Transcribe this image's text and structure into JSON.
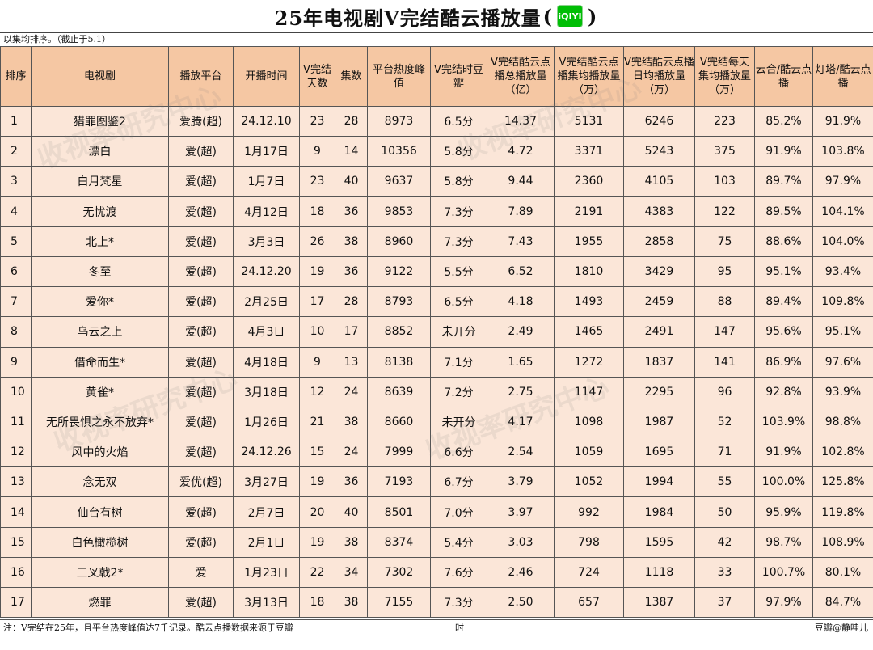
{
  "title": {
    "text": "25年电视剧V完结酷云播放量",
    "open_paren": "(",
    "logo_text": "iQIYI",
    "close_paren": ")"
  },
  "note_top": "以集均排序。（截止于5.1）",
  "headers": [
    "排序",
    "电视剧",
    "播放平台",
    "开播时间",
    "V完结天数",
    "集数",
    "平台热度峰值",
    "V完结时豆瓣",
    "V完结酷云点播总播放量（亿）",
    "V完结酷云点播集均播放量（万）",
    "V完结酷云点播日均播放量（万）",
    "V完结每天集均播放量（万）",
    "云合/酷云点播",
    "灯塔/酷云点播"
  ],
  "rows": [
    [
      "1",
      "猎罪图鉴2",
      "爱腾(超)",
      "24.12.10",
      "23",
      "28",
      "8973",
      "6.5分",
      "14.37",
      "5131",
      "6246",
      "223",
      "85.2%",
      "91.9%"
    ],
    [
      "2",
      "漂白",
      "爱(超)",
      "1月17日",
      "9",
      "14",
      "10356",
      "5.8分",
      "4.72",
      "3371",
      "5243",
      "375",
      "91.9%",
      "103.8%"
    ],
    [
      "3",
      "白月梵星",
      "爱(超)",
      "1月7日",
      "23",
      "40",
      "9637",
      "5.8分",
      "9.44",
      "2360",
      "4105",
      "103",
      "89.7%",
      "97.9%"
    ],
    [
      "4",
      "无忧渡",
      "爱(超)",
      "4月12日",
      "18",
      "36",
      "9853",
      "7.3分",
      "7.89",
      "2191",
      "4383",
      "122",
      "89.5%",
      "104.1%"
    ],
    [
      "5",
      "北上*",
      "爱(超)",
      "3月3日",
      "26",
      "38",
      "8960",
      "7.3分",
      "7.43",
      "1955",
      "2858",
      "75",
      "88.6%",
      "104.0%"
    ],
    [
      "6",
      "冬至",
      "爱(超)",
      "24.12.20",
      "19",
      "36",
      "9122",
      "5.5分",
      "6.52",
      "1810",
      "3429",
      "95",
      "95.1%",
      "93.4%"
    ],
    [
      "7",
      "爱你*",
      "爱(超)",
      "2月25日",
      "17",
      "28",
      "8793",
      "6.5分",
      "4.18",
      "1493",
      "2459",
      "88",
      "89.4%",
      "109.8%"
    ],
    [
      "8",
      "乌云之上",
      "爱(超)",
      "4月3日",
      "10",
      "17",
      "8852",
      "未开分",
      "2.49",
      "1465",
      "2491",
      "147",
      "95.6%",
      "95.1%"
    ],
    [
      "9",
      "借命而生*",
      "爱(超)",
      "4月18日",
      "9",
      "13",
      "8138",
      "7.1分",
      "1.65",
      "1272",
      "1837",
      "141",
      "86.9%",
      "97.6%"
    ],
    [
      "10",
      "黄雀*",
      "爱(超)",
      "3月18日",
      "12",
      "24",
      "8639",
      "7.2分",
      "2.75",
      "1147",
      "2295",
      "96",
      "92.8%",
      "93.9%"
    ],
    [
      "11",
      "无所畏惧之永不放弃*",
      "爱(超)",
      "1月26日",
      "21",
      "38",
      "8660",
      "未开分",
      "4.17",
      "1098",
      "1987",
      "52",
      "103.9%",
      "98.8%"
    ],
    [
      "12",
      "风中的火焰",
      "爱(超)",
      "24.12.26",
      "15",
      "24",
      "7999",
      "6.6分",
      "2.54",
      "1059",
      "1695",
      "71",
      "91.9%",
      "102.8%"
    ],
    [
      "13",
      "念无双",
      "爱优(超)",
      "3月27日",
      "19",
      "36",
      "7193",
      "6.7分",
      "3.79",
      "1052",
      "1994",
      "55",
      "100.0%",
      "125.8%"
    ],
    [
      "14",
      "仙台有树",
      "爱(超)",
      "2月7日",
      "20",
      "40",
      "8501",
      "7.0分",
      "3.97",
      "992",
      "1984",
      "50",
      "95.9%",
      "119.8%"
    ],
    [
      "15",
      "白色橄榄树",
      "爱(超)",
      "2月1日",
      "19",
      "38",
      "8374",
      "5.4分",
      "3.03",
      "798",
      "1595",
      "42",
      "98.7%",
      "108.9%"
    ],
    [
      "16",
      "三叉戟2*",
      "爱",
      "1月23日",
      "22",
      "34",
      "7302",
      "7.6分",
      "2.46",
      "724",
      "1118",
      "33",
      "100.7%",
      "80.1%"
    ],
    [
      "17",
      "燃罪",
      "爱(超)",
      "3月13日",
      "18",
      "38",
      "7155",
      "7.3分",
      "2.50",
      "657",
      "1387",
      "37",
      "97.9%",
      "84.7%"
    ]
  ],
  "footer": {
    "note": "注：V完结在25年，且平台热度峰值达7千记录。酷云点播数据来源于豆瓣",
    "note_tail": "时",
    "credit": "豆瓣@静哇儿"
  },
  "watermark": "收视率研究中心"
}
